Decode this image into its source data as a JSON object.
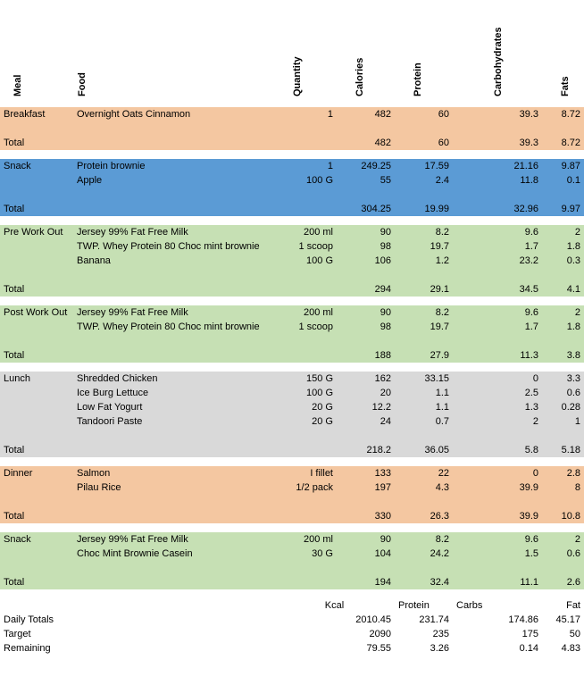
{
  "colors": {
    "peach": "#f4c7a1",
    "blue": "#5b9bd5",
    "green": "#c6e0b4",
    "grey": "#d9d9d9"
  },
  "headers": {
    "meal": "Meal",
    "food": "Food",
    "quantity": "Quantity",
    "calories": "Calories",
    "protein": "Protein",
    "carbs": "Carbohydrates",
    "fats": "Fats"
  },
  "sections": [
    {
      "name": "Breakfast",
      "color": "peach",
      "rows": [
        {
          "food": "Overnight Oats Cinnamon",
          "qty": "1",
          "cal": "482",
          "pro": "60",
          "carb": "39.3",
          "fat": "8.72"
        }
      ],
      "total": {
        "cal": "482",
        "pro": "60",
        "carb": "39.3",
        "fat": "8.72"
      }
    },
    {
      "name": "Snack",
      "color": "blue",
      "rows": [
        {
          "food": "Protein brownie",
          "qty": "1",
          "cal": "249.25",
          "pro": "17.59",
          "carb": "21.16",
          "fat": "9.87"
        },
        {
          "food": "Apple",
          "qty": "100 G",
          "cal": "55",
          "pro": "2.4",
          "carb": "11.8",
          "fat": "0.1"
        }
      ],
      "total": {
        "cal": "304.25",
        "pro": "19.99",
        "carb": "32.96",
        "fat": "9.97"
      }
    },
    {
      "name": "Pre Work Out",
      "color": "green",
      "rows": [
        {
          "food": "Jersey 99% Fat Free Milk",
          "qty": "200 ml",
          "cal": "90",
          "pro": "8.2",
          "carb": "9.6",
          "fat": "2"
        },
        {
          "food": "TWP. Whey Protein 80 Choc mint brownie",
          "qty": "1 scoop",
          "cal": "98",
          "pro": "19.7",
          "carb": "1.7",
          "fat": "1.8"
        },
        {
          "food": "Banana",
          "qty": "100 G",
          "cal": "106",
          "pro": "1.2",
          "carb": "23.2",
          "fat": "0.3"
        }
      ],
      "total": {
        "cal": "294",
        "pro": "29.1",
        "carb": "34.5",
        "fat": "4.1"
      }
    },
    {
      "name": "Post Work Out",
      "color": "green",
      "rows": [
        {
          "food": "Jersey 99% Fat Free Milk",
          "qty": "200 ml",
          "cal": "90",
          "pro": "8.2",
          "carb": "9.6",
          "fat": "2"
        },
        {
          "food": "TWP. Whey Protein 80 Choc mint brownie",
          "qty": "1 scoop",
          "cal": "98",
          "pro": "19.7",
          "carb": "1.7",
          "fat": "1.8"
        }
      ],
      "total": {
        "cal": "188",
        "pro": "27.9",
        "carb": "11.3",
        "fat": "3.8"
      }
    },
    {
      "name": "Lunch",
      "color": "grey",
      "rows": [
        {
          "food": "Shredded Chicken",
          "qty": "150 G",
          "cal": "162",
          "pro": "33.15",
          "carb": "0",
          "fat": "3.3"
        },
        {
          "food": "Ice Burg Lettuce",
          "qty": "100 G",
          "cal": "20",
          "pro": "1.1",
          "carb": "2.5",
          "fat": "0.6"
        },
        {
          "food": "Low Fat Yogurt",
          "qty": "20 G",
          "cal": "12.2",
          "pro": "1.1",
          "carb": "1.3",
          "fat": "0.28"
        },
        {
          "food": "Tandoori Paste",
          "qty": "20 G",
          "cal": "24",
          "pro": "0.7",
          "carb": "2",
          "fat": "1"
        }
      ],
      "total": {
        "cal": "218.2",
        "pro": "36.05",
        "carb": "5.8",
        "fat": "5.18"
      }
    },
    {
      "name": "Dinner",
      "color": "peach",
      "rows": [
        {
          "food": "Salmon",
          "qty": "I fillet",
          "cal": "133",
          "pro": "22",
          "carb": "0",
          "fat": "2.8"
        },
        {
          "food": "Pilau Rice",
          "qty": "1/2 pack",
          "cal": "197",
          "pro": "4.3",
          "carb": "39.9",
          "fat": "8"
        }
      ],
      "total": {
        "cal": "330",
        "pro": "26.3",
        "carb": "39.9",
        "fat": "10.8"
      }
    },
    {
      "name": "Snack",
      "color": "green",
      "rows": [
        {
          "food": "Jersey 99% Fat Free Milk",
          "qty": "200 ml",
          "cal": "90",
          "pro": "8.2",
          "carb": "9.6",
          "fat": "2"
        },
        {
          "food": "Choc Mint Brownie Casein",
          "qty": "30 G",
          "cal": "104",
          "pro": "24.2",
          "carb": "1.5",
          "fat": "0.6"
        }
      ],
      "total": {
        "cal": "194",
        "pro": "32.4",
        "carb": "11.1",
        "fat": "2.6"
      }
    }
  ],
  "summary": {
    "labels": {
      "kcal": "Kcal",
      "protein": "Protein",
      "carbs": "Carbs",
      "fat": "Fat"
    },
    "rows": [
      {
        "label": "Daily Totals",
        "kcal": "2010.45",
        "protein": "231.74",
        "carbs": "174.86",
        "fat": "45.17"
      },
      {
        "label": "Target",
        "kcal": "2090",
        "protein": "235",
        "carbs": "175",
        "fat": "50"
      },
      {
        "label": "Remaining",
        "kcal": "79.55",
        "protein": "3.26",
        "carbs": "0.14",
        "fat": "4.83"
      }
    ],
    "total_label": "Total"
  }
}
